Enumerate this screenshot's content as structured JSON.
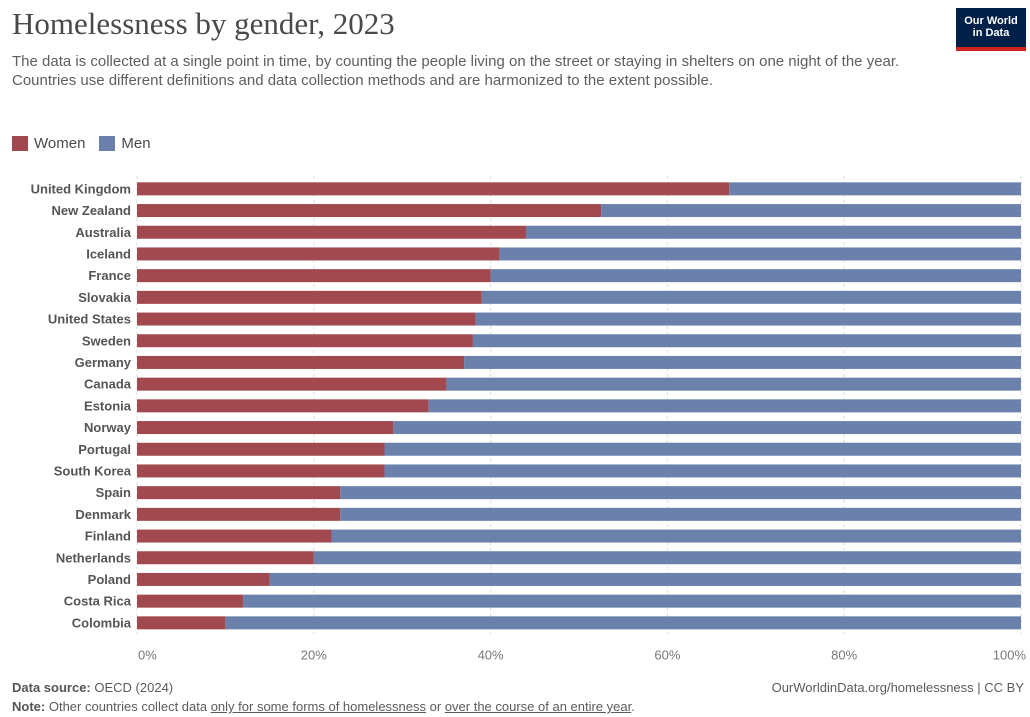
{
  "header": {
    "title": "Homelessness by gender, 2023",
    "subtitle": "The data is collected at a single point in time, by counting the people living on the street or staying in shelters on one night of the year. Countries use different definitions and data collection methods and are harmonized to the extent possible.",
    "logo_line1": "Our World",
    "logo_line2": "in Data"
  },
  "colors": {
    "women": "#a2484f",
    "men": "#6b81ab",
    "grid": "#dddddd"
  },
  "footer": {
    "source_label": "Data source:",
    "source_value": "OECD (2024)",
    "url": "OurWorldinData.org/homelessness | CC BY",
    "note_label": "Note:",
    "note_text1": "Other countries collect data ",
    "note_link1": "only for some forms of homelessness",
    "note_text2": " or ",
    "note_link2": "over the course of an entire year",
    "note_text3": "."
  },
  "chart_data": {
    "type": "bar",
    "orientation": "horizontal",
    "stacked": true,
    "legend_position": "top-left",
    "categories": [
      "United Kingdom",
      "New Zealand",
      "Australia",
      "Iceland",
      "France",
      "Slovakia",
      "United States",
      "Sweden",
      "Germany",
      "Canada",
      "Estonia",
      "Norway",
      "Portugal",
      "South Korea",
      "Spain",
      "Denmark",
      "Finland",
      "Netherlands",
      "Poland",
      "Costa Rica",
      "Colombia"
    ],
    "series": [
      {
        "name": "Women",
        "values": [
          67,
          52.5,
          44,
          41,
          40,
          39,
          38.3,
          38,
          37,
          35,
          33,
          29,
          28,
          28,
          23,
          23,
          22,
          20,
          15,
          12,
          10
        ]
      },
      {
        "name": "Men",
        "values": [
          33,
          47.5,
          56,
          59,
          60,
          61,
          61.7,
          62,
          63,
          65,
          67,
          71,
          72,
          72,
          77,
          77,
          78,
          80,
          85,
          88,
          90
        ]
      }
    ],
    "xlim": [
      0,
      100
    ],
    "xticks": [
      "0%",
      "20%",
      "40%",
      "60%",
      "80%",
      "100%"
    ],
    "grid": true
  }
}
